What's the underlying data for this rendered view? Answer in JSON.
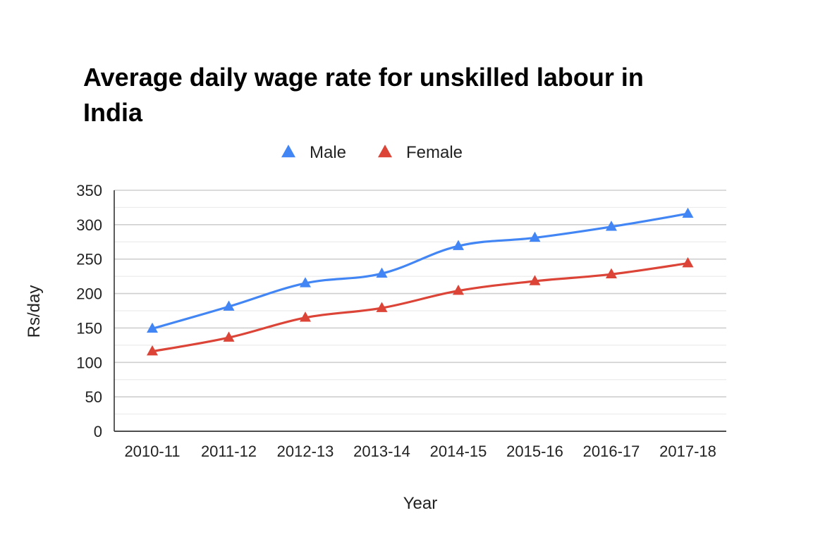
{
  "chart_data": {
    "type": "line",
    "title_lines": [
      "Average daily wage rate for unskilled labour in",
      "India"
    ],
    "xlabel": "Year",
    "ylabel": "Rs/day",
    "categories": [
      "2010-11",
      "2011-12",
      "2012-13",
      "2013-14",
      "2014-15",
      "2015-16",
      "2016-17",
      "2017-18"
    ],
    "ylim": [
      0,
      350
    ],
    "yticks": [
      0,
      50,
      100,
      150,
      200,
      250,
      300,
      350
    ],
    "grid": true,
    "legend_position": "top",
    "series": [
      {
        "name": "Male",
        "color": "#4285F4",
        "marker": "triangle",
        "values": [
          149,
          181,
          215,
          229,
          269,
          281,
          297,
          316
        ]
      },
      {
        "name": "Female",
        "color": "#DB4437",
        "marker": "triangle",
        "values": [
          116,
          136,
          165,
          179,
          204,
          218,
          228,
          244
        ]
      }
    ]
  }
}
